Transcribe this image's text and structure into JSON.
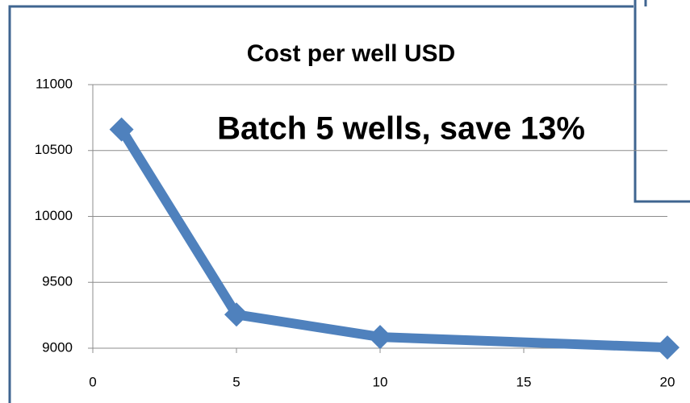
{
  "chart_data": {
    "type": "line",
    "title": "Cost per well USD",
    "annotation": "Batch 5 wells, save 13%",
    "x": [
      1,
      5,
      10,
      20
    ],
    "series": [
      {
        "name": "Cost per well",
        "color": "#4f81bd",
        "values": [
          10660,
          9255,
          9085,
          9005
        ]
      }
    ],
    "xlim": [
      0,
      20
    ],
    "xticks": [
      0,
      5,
      10,
      15,
      20
    ],
    "ylim": [
      9000,
      11000
    ],
    "yticks": [
      9000,
      9500,
      10000,
      10500,
      11000
    ],
    "grid": true
  }
}
